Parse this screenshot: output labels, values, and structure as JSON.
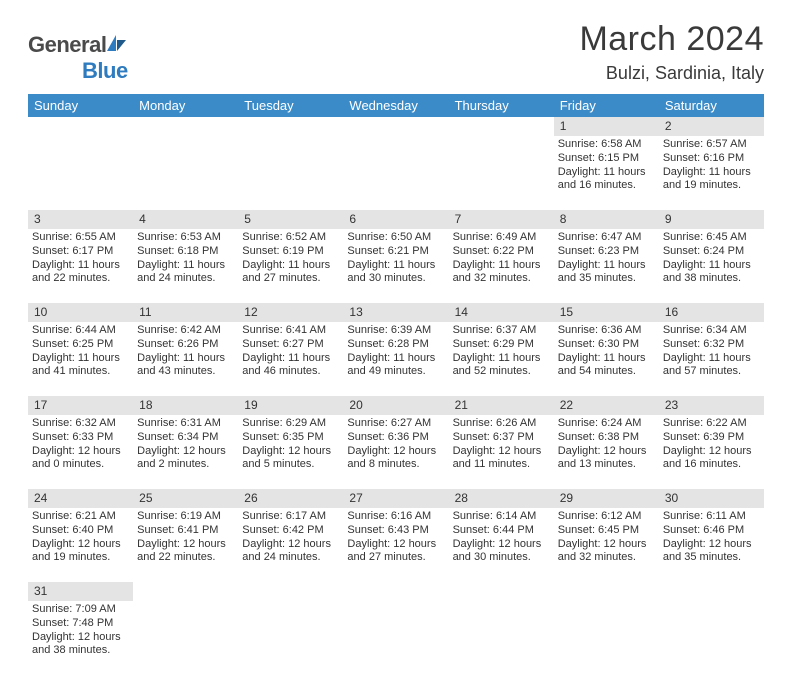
{
  "brand": {
    "name_a": "General",
    "name_b": "Blue"
  },
  "title": "March 2024",
  "location": "Bulzi, Sardinia, Italy",
  "colors": {
    "header_bg": "#3b8bc9",
    "header_fg": "#ffffff",
    "daynum_bg": "#e4e4e4",
    "text": "#333333",
    "brand_gray": "#4a4a4a",
    "brand_blue": "#2f7bbf",
    "page_bg": "#ffffff"
  },
  "fonts": {
    "base": "Arial",
    "month_size_pt": 26,
    "location_size_pt": 14,
    "header_size_pt": 10,
    "cell_size_pt": 8
  },
  "weekdays": [
    "Sunday",
    "Monday",
    "Tuesday",
    "Wednesday",
    "Thursday",
    "Friday",
    "Saturday"
  ],
  "weeks": [
    {
      "nums": [
        "",
        "",
        "",
        "",
        "",
        "1",
        "2"
      ],
      "cells": [
        null,
        null,
        null,
        null,
        null,
        {
          "sr": "Sunrise: 6:58 AM",
          "ss": "Sunset: 6:15 PM",
          "d1": "Daylight: 11 hours",
          "d2": "and 16 minutes."
        },
        {
          "sr": "Sunrise: 6:57 AM",
          "ss": "Sunset: 6:16 PM",
          "d1": "Daylight: 11 hours",
          "d2": "and 19 minutes."
        }
      ]
    },
    {
      "nums": [
        "3",
        "4",
        "5",
        "6",
        "7",
        "8",
        "9"
      ],
      "cells": [
        {
          "sr": "Sunrise: 6:55 AM",
          "ss": "Sunset: 6:17 PM",
          "d1": "Daylight: 11 hours",
          "d2": "and 22 minutes."
        },
        {
          "sr": "Sunrise: 6:53 AM",
          "ss": "Sunset: 6:18 PM",
          "d1": "Daylight: 11 hours",
          "d2": "and 24 minutes."
        },
        {
          "sr": "Sunrise: 6:52 AM",
          "ss": "Sunset: 6:19 PM",
          "d1": "Daylight: 11 hours",
          "d2": "and 27 minutes."
        },
        {
          "sr": "Sunrise: 6:50 AM",
          "ss": "Sunset: 6:21 PM",
          "d1": "Daylight: 11 hours",
          "d2": "and 30 minutes."
        },
        {
          "sr": "Sunrise: 6:49 AM",
          "ss": "Sunset: 6:22 PM",
          "d1": "Daylight: 11 hours",
          "d2": "and 32 minutes."
        },
        {
          "sr": "Sunrise: 6:47 AM",
          "ss": "Sunset: 6:23 PM",
          "d1": "Daylight: 11 hours",
          "d2": "and 35 minutes."
        },
        {
          "sr": "Sunrise: 6:45 AM",
          "ss": "Sunset: 6:24 PM",
          "d1": "Daylight: 11 hours",
          "d2": "and 38 minutes."
        }
      ]
    },
    {
      "nums": [
        "10",
        "11",
        "12",
        "13",
        "14",
        "15",
        "16"
      ],
      "cells": [
        {
          "sr": "Sunrise: 6:44 AM",
          "ss": "Sunset: 6:25 PM",
          "d1": "Daylight: 11 hours",
          "d2": "and 41 minutes."
        },
        {
          "sr": "Sunrise: 6:42 AM",
          "ss": "Sunset: 6:26 PM",
          "d1": "Daylight: 11 hours",
          "d2": "and 43 minutes."
        },
        {
          "sr": "Sunrise: 6:41 AM",
          "ss": "Sunset: 6:27 PM",
          "d1": "Daylight: 11 hours",
          "d2": "and 46 minutes."
        },
        {
          "sr": "Sunrise: 6:39 AM",
          "ss": "Sunset: 6:28 PM",
          "d1": "Daylight: 11 hours",
          "d2": "and 49 minutes."
        },
        {
          "sr": "Sunrise: 6:37 AM",
          "ss": "Sunset: 6:29 PM",
          "d1": "Daylight: 11 hours",
          "d2": "and 52 minutes."
        },
        {
          "sr": "Sunrise: 6:36 AM",
          "ss": "Sunset: 6:30 PM",
          "d1": "Daylight: 11 hours",
          "d2": "and 54 minutes."
        },
        {
          "sr": "Sunrise: 6:34 AM",
          "ss": "Sunset: 6:32 PM",
          "d1": "Daylight: 11 hours",
          "d2": "and 57 minutes."
        }
      ]
    },
    {
      "nums": [
        "17",
        "18",
        "19",
        "20",
        "21",
        "22",
        "23"
      ],
      "cells": [
        {
          "sr": "Sunrise: 6:32 AM",
          "ss": "Sunset: 6:33 PM",
          "d1": "Daylight: 12 hours",
          "d2": "and 0 minutes."
        },
        {
          "sr": "Sunrise: 6:31 AM",
          "ss": "Sunset: 6:34 PM",
          "d1": "Daylight: 12 hours",
          "d2": "and 2 minutes."
        },
        {
          "sr": "Sunrise: 6:29 AM",
          "ss": "Sunset: 6:35 PM",
          "d1": "Daylight: 12 hours",
          "d2": "and 5 minutes."
        },
        {
          "sr": "Sunrise: 6:27 AM",
          "ss": "Sunset: 6:36 PM",
          "d1": "Daylight: 12 hours",
          "d2": "and 8 minutes."
        },
        {
          "sr": "Sunrise: 6:26 AM",
          "ss": "Sunset: 6:37 PM",
          "d1": "Daylight: 12 hours",
          "d2": "and 11 minutes."
        },
        {
          "sr": "Sunrise: 6:24 AM",
          "ss": "Sunset: 6:38 PM",
          "d1": "Daylight: 12 hours",
          "d2": "and 13 minutes."
        },
        {
          "sr": "Sunrise: 6:22 AM",
          "ss": "Sunset: 6:39 PM",
          "d1": "Daylight: 12 hours",
          "d2": "and 16 minutes."
        }
      ]
    },
    {
      "nums": [
        "24",
        "25",
        "26",
        "27",
        "28",
        "29",
        "30"
      ],
      "cells": [
        {
          "sr": "Sunrise: 6:21 AM",
          "ss": "Sunset: 6:40 PM",
          "d1": "Daylight: 12 hours",
          "d2": "and 19 minutes."
        },
        {
          "sr": "Sunrise: 6:19 AM",
          "ss": "Sunset: 6:41 PM",
          "d1": "Daylight: 12 hours",
          "d2": "and 22 minutes."
        },
        {
          "sr": "Sunrise: 6:17 AM",
          "ss": "Sunset: 6:42 PM",
          "d1": "Daylight: 12 hours",
          "d2": "and 24 minutes."
        },
        {
          "sr": "Sunrise: 6:16 AM",
          "ss": "Sunset: 6:43 PM",
          "d1": "Daylight: 12 hours",
          "d2": "and 27 minutes."
        },
        {
          "sr": "Sunrise: 6:14 AM",
          "ss": "Sunset: 6:44 PM",
          "d1": "Daylight: 12 hours",
          "d2": "and 30 minutes."
        },
        {
          "sr": "Sunrise: 6:12 AM",
          "ss": "Sunset: 6:45 PM",
          "d1": "Daylight: 12 hours",
          "d2": "and 32 minutes."
        },
        {
          "sr": "Sunrise: 6:11 AM",
          "ss": "Sunset: 6:46 PM",
          "d1": "Daylight: 12 hours",
          "d2": "and 35 minutes."
        }
      ]
    },
    {
      "nums": [
        "31",
        "",
        "",
        "",
        "",
        "",
        ""
      ],
      "cells": [
        {
          "sr": "Sunrise: 7:09 AM",
          "ss": "Sunset: 7:48 PM",
          "d1": "Daylight: 12 hours",
          "d2": "and 38 minutes."
        },
        null,
        null,
        null,
        null,
        null,
        null
      ]
    }
  ]
}
